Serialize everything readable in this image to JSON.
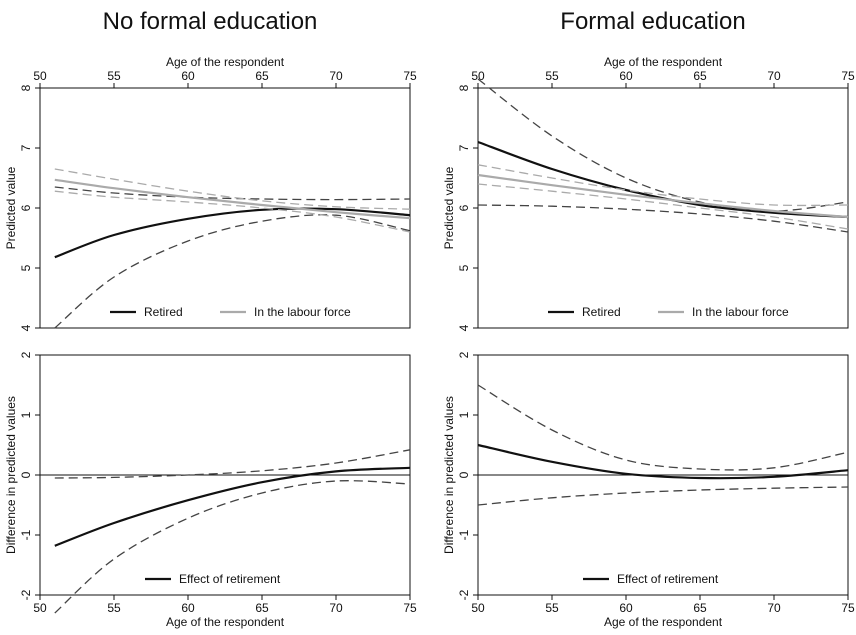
{
  "figure": {
    "titles": [
      "No formal education",
      "Formal education"
    ]
  },
  "chart_data": [
    {
      "type": "line",
      "panel": "No formal education - predicted values",
      "xlabel": "Age of the respondent",
      "xlabel_position": "top",
      "ylabel": "Predicted value",
      "xlim": [
        50,
        75
      ],
      "ylim": [
        4,
        8
      ],
      "xticks": [
        50,
        55,
        60,
        65,
        70,
        75
      ],
      "yticks": [
        4,
        5,
        6,
        7,
        8
      ],
      "x": [
        51,
        55,
        60,
        65,
        70,
        75
      ],
      "series": [
        {
          "name": "Retired",
          "color": "#111111",
          "dash": "solid",
          "values": [
            5.18,
            5.55,
            5.82,
            5.97,
            5.98,
            5.88
          ]
        },
        {
          "name": "",
          "color": "#444444",
          "dash": "dashed",
          "values": [
            4.0,
            4.85,
            5.45,
            5.78,
            5.88,
            5.62
          ]
        },
        {
          "name": "",
          "color": "#444444",
          "dash": "dashed",
          "values": [
            6.35,
            6.25,
            6.18,
            6.15,
            6.14,
            6.15
          ]
        },
        {
          "name": "In the labour force",
          "color": "#aaaaaa",
          "dash": "solid",
          "values": [
            6.47,
            6.33,
            6.18,
            6.05,
            5.93,
            5.83
          ]
        },
        {
          "name": "",
          "color": "#aaaaaa",
          "dash": "dashed",
          "values": [
            6.65,
            6.48,
            6.28,
            6.12,
            6.02,
            5.98
          ]
        },
        {
          "name": "",
          "color": "#aaaaaa",
          "dash": "dashed",
          "values": [
            6.28,
            6.18,
            6.1,
            6.0,
            5.85,
            5.6
          ]
        }
      ],
      "legend": {
        "placement": "bottom",
        "entries": [
          {
            "label": "Retired",
            "color": "#111111"
          },
          {
            "label": "In the labour force",
            "color": "#aaaaaa"
          }
        ]
      }
    },
    {
      "type": "line",
      "panel": "Formal education - predicted values",
      "xlabel": "Age of the respondent",
      "xlabel_position": "top",
      "ylabel": "Predicted value",
      "xlim": [
        50,
        75
      ],
      "ylim": [
        4,
        8
      ],
      "xticks": [
        50,
        55,
        60,
        65,
        70,
        75
      ],
      "yticks": [
        4,
        5,
        6,
        7,
        8
      ],
      "x": [
        50,
        55,
        60,
        65,
        70,
        75
      ],
      "series": [
        {
          "name": "Retired",
          "color": "#111111",
          "dash": "solid",
          "values": [
            7.1,
            6.65,
            6.3,
            6.05,
            5.92,
            5.85
          ]
        },
        {
          "name": "",
          "color": "#444444",
          "dash": "dashed",
          "values": [
            8.15,
            7.2,
            6.5,
            6.1,
            5.95,
            6.1
          ]
        },
        {
          "name": "",
          "color": "#444444",
          "dash": "dashed",
          "values": [
            6.05,
            6.03,
            5.98,
            5.9,
            5.78,
            5.6
          ]
        },
        {
          "name": "In the labour force",
          "color": "#aaaaaa",
          "dash": "solid",
          "values": [
            6.55,
            6.38,
            6.22,
            6.08,
            5.95,
            5.85
          ]
        },
        {
          "name": "",
          "color": "#aaaaaa",
          "dash": "dashed",
          "values": [
            6.72,
            6.5,
            6.3,
            6.15,
            6.05,
            6.05
          ]
        },
        {
          "name": "",
          "color": "#aaaaaa",
          "dash": "dashed",
          "values": [
            6.4,
            6.28,
            6.15,
            6.0,
            5.85,
            5.65
          ]
        }
      ],
      "legend": {
        "placement": "bottom",
        "entries": [
          {
            "label": "Retired",
            "color": "#111111"
          },
          {
            "label": "In the labour force",
            "color": "#aaaaaa"
          }
        ]
      }
    },
    {
      "type": "line",
      "panel": "No formal education - effect of retirement",
      "xlabel": "Age of the respondent",
      "xlabel_position": "bottom",
      "ylabel": "Difference in predicted values",
      "xlim": [
        50,
        75
      ],
      "ylim": [
        -2,
        2
      ],
      "xticks": [
        50,
        55,
        60,
        65,
        70,
        75
      ],
      "yticks": [
        -2,
        -1,
        0,
        1,
        2
      ],
      "zero_line": true,
      "x": [
        51,
        55,
        60,
        65,
        70,
        75
      ],
      "series": [
        {
          "name": "Effect of retirement",
          "color": "#111111",
          "dash": "solid",
          "values": [
            -1.18,
            -0.8,
            -0.42,
            -0.12,
            0.06,
            0.12
          ]
        },
        {
          "name": "",
          "color": "#444444",
          "dash": "dashed",
          "values": [
            -2.3,
            -1.4,
            -0.72,
            -0.3,
            -0.1,
            -0.15
          ]
        },
        {
          "name": "",
          "color": "#444444",
          "dash": "dashed",
          "values": [
            -0.05,
            -0.04,
            0.0,
            0.07,
            0.2,
            0.42
          ]
        }
      ],
      "legend": {
        "placement": "bottom",
        "entries": [
          {
            "label": "Effect of retirement",
            "color": "#111111"
          }
        ]
      }
    },
    {
      "type": "line",
      "panel": "Formal education - effect of retirement",
      "xlabel": "Age of the respondent",
      "xlabel_position": "bottom",
      "ylabel": "Difference in predicted values",
      "xlim": [
        50,
        75
      ],
      "ylim": [
        -2,
        2
      ],
      "xticks": [
        50,
        55,
        60,
        65,
        70,
        75
      ],
      "yticks": [
        -2,
        -1,
        0,
        1,
        2
      ],
      "zero_line": true,
      "x": [
        50,
        55,
        60,
        65,
        70,
        75
      ],
      "series": [
        {
          "name": "Effect of retirement",
          "color": "#111111",
          "dash": "solid",
          "values": [
            0.5,
            0.22,
            0.02,
            -0.05,
            -0.03,
            0.08
          ]
        },
        {
          "name": "",
          "color": "#444444",
          "dash": "dashed",
          "values": [
            1.5,
            0.75,
            0.25,
            0.1,
            0.12,
            0.38
          ]
        },
        {
          "name": "",
          "color": "#444444",
          "dash": "dashed",
          "values": [
            -0.5,
            -0.38,
            -0.3,
            -0.25,
            -0.22,
            -0.2
          ]
        }
      ],
      "legend": {
        "placement": "bottom",
        "entries": [
          {
            "label": "Effect of retirement",
            "color": "#111111"
          }
        ]
      }
    }
  ]
}
